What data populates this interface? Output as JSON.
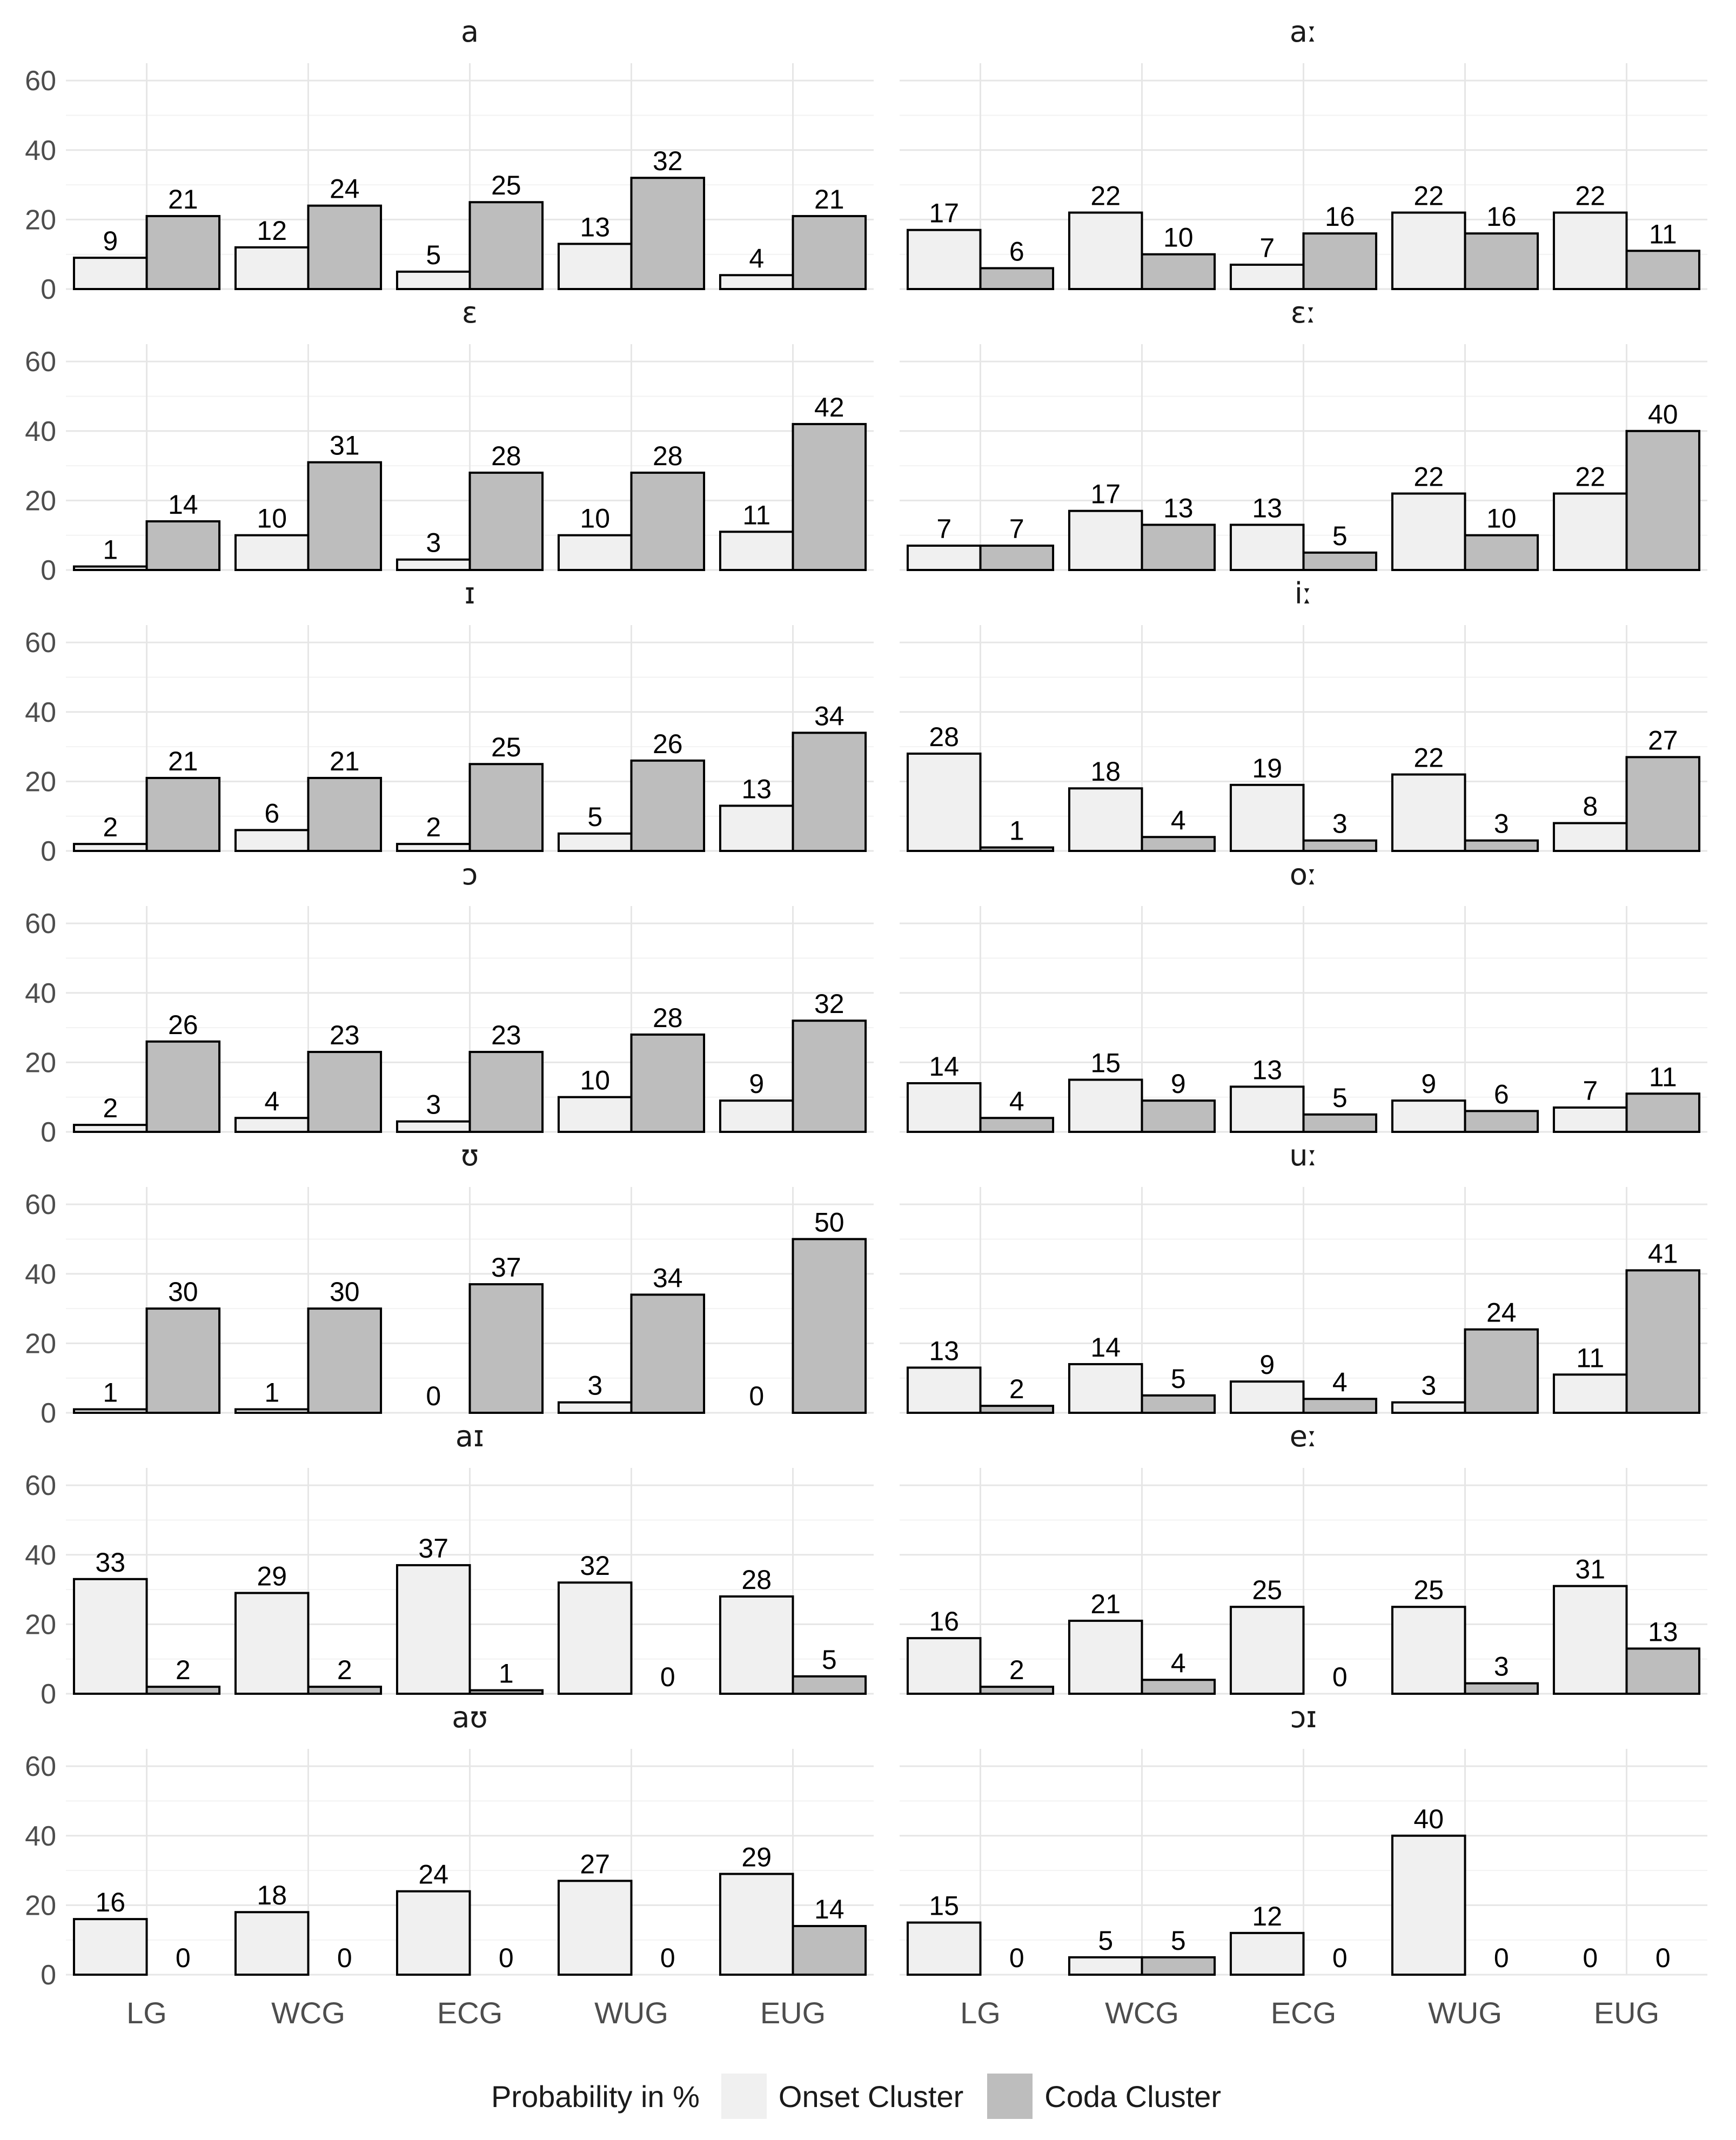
{
  "legend": {
    "title": "Probability in %",
    "items": [
      {
        "label": "Onset Cluster",
        "color": "#f0f0f0"
      },
      {
        "label": "Coda Cluster",
        "color": "#bdbdbd"
      }
    ]
  },
  "chart_data": {
    "type": "bar",
    "layout": "faceted grid, 7 rows x 2 columns, shared axes",
    "categories": [
      "LG",
      "WCG",
      "ECG",
      "WUG",
      "EUG"
    ],
    "yticks": [
      0,
      20,
      40,
      60
    ],
    "ylim": [
      0,
      65
    ],
    "grid": true,
    "legend_position": "bottom",
    "series_names": [
      "Onset Cluster",
      "Coda Cluster"
    ],
    "series_colors": [
      "#f0f0f0",
      "#bdbdbd"
    ],
    "facets": [
      {
        "title": "a",
        "onset": [
          9,
          12,
          5,
          13,
          4
        ],
        "coda": [
          21,
          24,
          25,
          32,
          21
        ]
      },
      {
        "title": "aː",
        "onset": [
          17,
          22,
          7,
          22,
          22
        ],
        "coda": [
          6,
          10,
          16,
          16,
          11
        ]
      },
      {
        "title": "ɛ",
        "onset": [
          1,
          10,
          3,
          10,
          11
        ],
        "coda": [
          14,
          31,
          28,
          28,
          42
        ]
      },
      {
        "title": "ɛː",
        "onset": [
          7,
          17,
          13,
          22,
          22
        ],
        "coda": [
          7,
          13,
          5,
          10,
          40
        ]
      },
      {
        "title": "ɪ",
        "onset": [
          2,
          6,
          2,
          5,
          13
        ],
        "coda": [
          21,
          21,
          25,
          26,
          34
        ]
      },
      {
        "title": "iː",
        "onset": [
          28,
          18,
          19,
          22,
          8
        ],
        "coda": [
          1,
          4,
          3,
          3,
          27
        ]
      },
      {
        "title": "ɔ",
        "onset": [
          2,
          4,
          3,
          10,
          9
        ],
        "coda": [
          26,
          23,
          23,
          28,
          32
        ]
      },
      {
        "title": "oː",
        "onset": [
          14,
          15,
          13,
          9,
          7
        ],
        "coda": [
          4,
          9,
          5,
          6,
          11
        ]
      },
      {
        "title": "ʊ",
        "onset": [
          1,
          1,
          0,
          3,
          0
        ],
        "coda": [
          30,
          30,
          37,
          34,
          50
        ]
      },
      {
        "title": "uː",
        "onset": [
          13,
          14,
          9,
          3,
          11
        ],
        "coda": [
          2,
          5,
          4,
          24,
          41
        ]
      },
      {
        "title": "aɪ",
        "onset": [
          33,
          29,
          37,
          32,
          28
        ],
        "coda": [
          2,
          2,
          1,
          0,
          5
        ]
      },
      {
        "title": "eː",
        "onset": [
          16,
          21,
          25,
          25,
          31
        ],
        "coda": [
          2,
          4,
          0,
          3,
          13
        ]
      },
      {
        "title": "aʊ",
        "onset": [
          16,
          18,
          24,
          27,
          29
        ],
        "coda": [
          0,
          0,
          0,
          0,
          14
        ]
      },
      {
        "title": "ɔɪ",
        "onset": [
          15,
          5,
          12,
          40,
          0
        ],
        "coda": [
          0,
          5,
          0,
          0,
          0
        ]
      }
    ]
  }
}
